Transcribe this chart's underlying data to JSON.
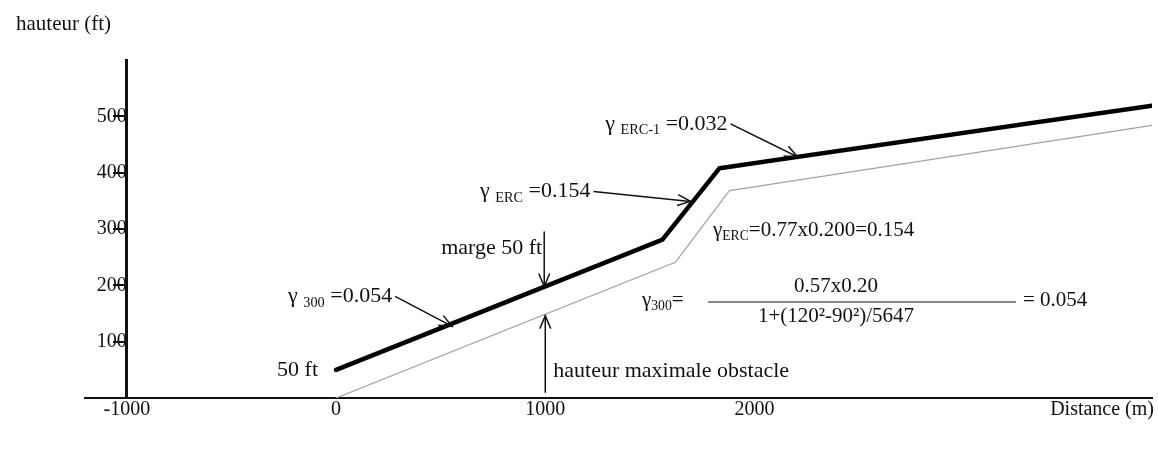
{
  "chart_data": {
    "type": "line",
    "ylabel": "hauteur (ft)",
    "xlabel": "Distance (m)",
    "xlim": [
      -1200,
      3900
    ],
    "ylim": [
      0,
      600
    ],
    "xticks": [
      -1000,
      0,
      1000,
      2000
    ],
    "yticks": [
      100,
      200,
      300,
      400,
      500
    ],
    "grid": false,
    "legend": false,
    "marker": "none",
    "line_style": "solid",
    "series": [
      {
        "color": "#000000",
        "x": [
          0,
          1560,
          1833,
          3900
        ],
        "values": [
          50,
          281,
          408,
          519
        ]
      },
      {
        "color": "#a0a0a0",
        "x": [
          0,
          1622,
          1880,
          3900
        ],
        "values": [
          0,
          241,
          368,
          484
        ]
      }
    ],
    "annotations": [
      {
        "text": "γ $_{ERC-1}$ =0.032",
        "x": 2206,
        "y": 428
      },
      {
        "text": "γ $_{ERC}$ =0.154",
        "x": 1694,
        "y": 349
      },
      {
        "text": "marge 50 ft",
        "x": 995,
        "y": 198
      },
      {
        "text": "γ $_{300}$ =0.054",
        "x": 555,
        "y": 127
      },
      {
        "text": "50 ft",
        "x": 0,
        "y": 50
      },
      {
        "text": "hauteur maximale obstacle",
        "x": 1000,
        "y": 146
      },
      "γ$_{ERC}$=0.77x0.200=0.154",
      "γ$_{300}$=",
      "0.57x0.20",
      "1+(120²-90²)/5647",
      "= 0.054"
    ]
  }
}
